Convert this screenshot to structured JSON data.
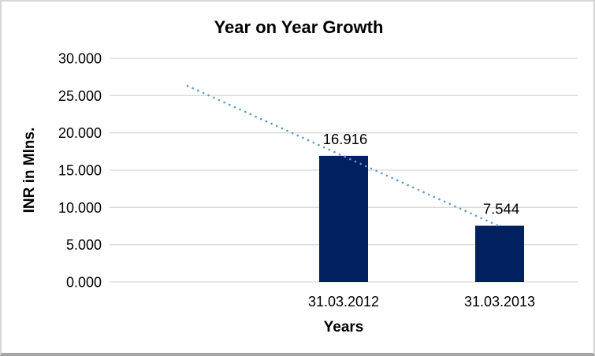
{
  "window": {
    "background": "#FFFFFF",
    "border_color": "#D6D6D6",
    "bottom_edge_color": "#A6A6A6"
  },
  "chart_data": {
    "type": "bar",
    "title": "Year on Year Growth",
    "categories": [
      "31.03.2012",
      "31.03.2013"
    ],
    "values": [
      16.916,
      7.544
    ],
    "value_labels": [
      "16.916",
      "7.544"
    ],
    "xlabel": "Years",
    "ylabel": "INR in Mlns.",
    "ylim": [
      0,
      30
    ],
    "ytick_values": [
      0,
      5,
      10,
      15,
      20,
      25,
      30
    ],
    "ytick_labels": [
      "0.000",
      "5.000",
      "10.000",
      "15.000",
      "20.000",
      "25.000",
      "30.000"
    ],
    "grid": true,
    "legend": "none",
    "bar_color": "#002060",
    "gridline_color": "#D9D9D9",
    "text_color": "#000000",
    "category_slots": 3,
    "bar_slots": [
      1,
      2
    ],
    "trendline": {
      "type": "linear",
      "style": "dotted",
      "color": "#5B9BD5",
      "start": {
        "slot": 0,
        "value": 26.3
      },
      "end": {
        "slot": 2,
        "value": 7.45
      }
    }
  }
}
